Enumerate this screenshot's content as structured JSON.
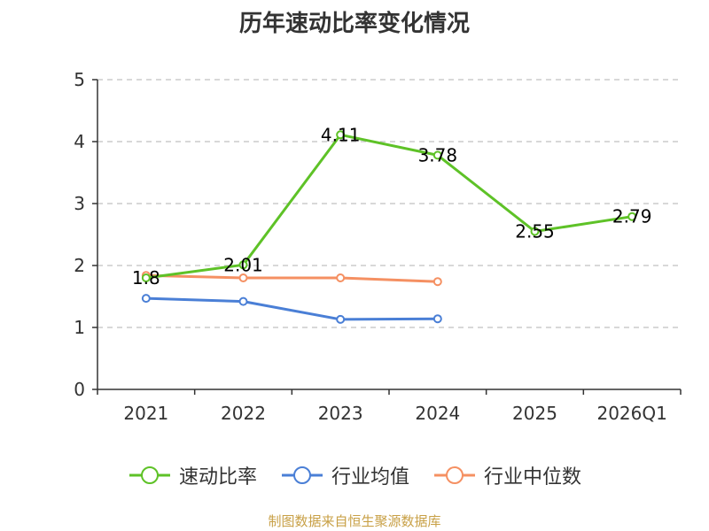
{
  "chart_data": {
    "type": "line",
    "title": "历年速动比率变化情况",
    "categories": [
      "2021",
      "2022",
      "2023",
      "2024",
      "2025",
      "2026Q1"
    ],
    "ylim": [
      0,
      5
    ],
    "yticks": [
      "0",
      "1",
      "2",
      "3",
      "4",
      "5"
    ],
    "grid": "horizontal dashed",
    "legend_position": "bottom",
    "series": [
      {
        "name": "速动比率",
        "color": "#5ec227",
        "values": [
          1.8,
          2.01,
          4.11,
          3.78,
          2.55,
          2.79
        ],
        "labels": [
          "1.8",
          "2.01",
          "4.11",
          "3.78",
          "2.55",
          "2.79"
        ]
      },
      {
        "name": "行业均值",
        "color": "#4a7fd6",
        "values": [
          1.47,
          1.42,
          1.13,
          1.14,
          null,
          null
        ],
        "labels": []
      },
      {
        "name": "行业中位数",
        "color": "#f59062",
        "values": [
          1.84,
          1.8,
          1.8,
          1.74,
          null,
          null
        ],
        "labels": []
      }
    ]
  },
  "source_note": "制图数据来自恒生聚源数据库"
}
